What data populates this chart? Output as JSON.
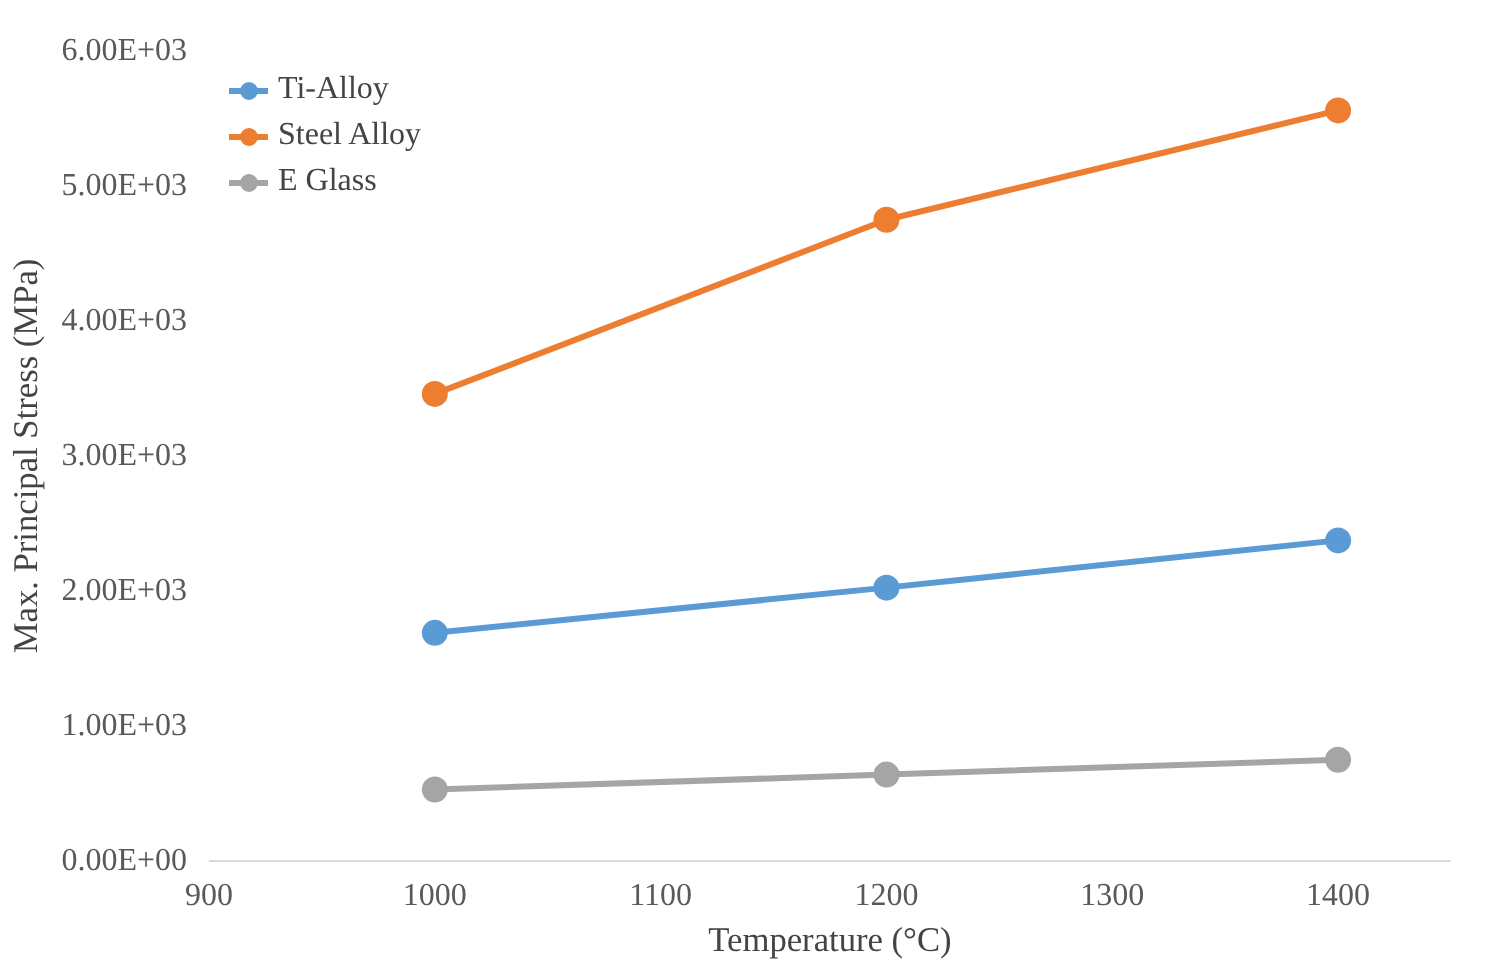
{
  "chart_data": {
    "type": "line",
    "xlabel": "Temperature (°C)",
    "ylabel": "Max. Principal Stress (MPa)",
    "x": [
      1000,
      1200,
      1400
    ],
    "series": [
      {
        "name": "Ti-Alloy",
        "color": "#5b9bd5",
        "values": [
          1690,
          2025,
          2375
        ]
      },
      {
        "name": "Steel Alloy",
        "color": "#ed7d31",
        "values": [
          3460,
          4750,
          5560
        ]
      },
      {
        "name": "E Glass",
        "color": "#a5a5a5",
        "values": [
          530,
          640,
          750
        ]
      }
    ],
    "xlim": [
      900,
      1450
    ],
    "xticks": [
      900,
      1000,
      1100,
      1200,
      1300,
      1400
    ],
    "ylim": [
      0,
      6000
    ],
    "yticks": [
      {
        "value": 0,
        "label": "0.00E+00"
      },
      {
        "value": 1000,
        "label": "1.00E+03"
      },
      {
        "value": 2000,
        "label": "2.00E+03"
      },
      {
        "value": 3000,
        "label": "3.00E+03"
      },
      {
        "value": 4000,
        "label": "4.00E+03"
      },
      {
        "value": 5000,
        "label": "5.00E+03"
      },
      {
        "value": 6000,
        "label": "6.00E+03"
      }
    ],
    "grid": false,
    "legend": "top left",
    "marker": "circle",
    "line_style": "solid"
  }
}
